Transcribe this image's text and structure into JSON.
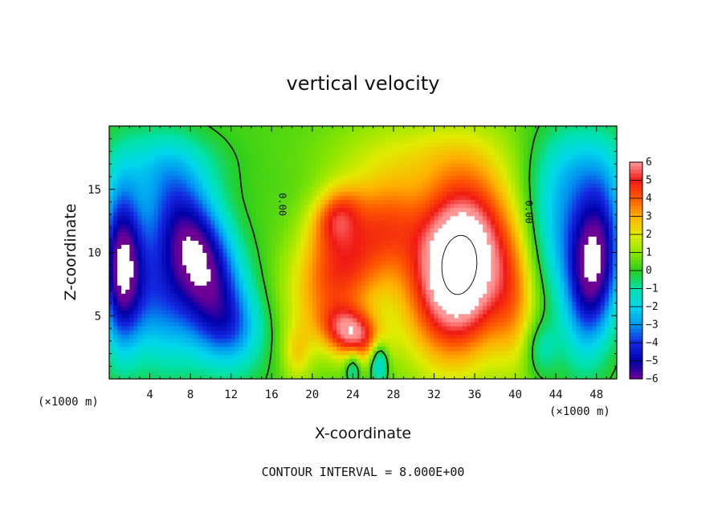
{
  "chart_data": {
    "type": "heatmap",
    "title": "vertical velocity",
    "xlabel": "X-coordinate",
    "ylabel": "Z-coordinate",
    "x_unit": "(×1000 m)",
    "xlim": [
      0,
      50
    ],
    "ylim": [
      0,
      20
    ],
    "x_ticks": [
      4,
      8,
      12,
      16,
      20,
      24,
      28,
      32,
      36,
      40,
      44,
      48
    ],
    "y_ticks": [
      5,
      10,
      15
    ],
    "colorbar": {
      "ticks": [
        6,
        5,
        4,
        3,
        2,
        1,
        0,
        -1,
        -2,
        -3,
        -4,
        -5,
        -6
      ],
      "range": [
        -6,
        6
      ]
    },
    "contour_labels": [
      "0.00",
      "0.00"
    ],
    "footer": "CONTOUR INTERVAL = 8.000E+00",
    "blobs": [
      {
        "x": 8.8,
        "z": 9.5,
        "amp": -6.8,
        "sx": 2.6,
        "sz": 4.6,
        "tilt": -0.35
      },
      {
        "x": 4.5,
        "z": 6.5,
        "amp": -3.2,
        "sx": 2.6,
        "sz": 4.0,
        "tilt": -0.2
      },
      {
        "x": 1.2,
        "z": 9.0,
        "amp": -5.8,
        "sx": 1.4,
        "sz": 4.5,
        "tilt": 0.0
      },
      {
        "x": 47.8,
        "z": 9.0,
        "amp": -6.4,
        "sx": 1.8,
        "sz": 4.5,
        "tilt": 0.1
      },
      {
        "x": 44.5,
        "z": 12.0,
        "amp": -2.6,
        "sx": 2.5,
        "sz": 4.0,
        "tilt": 0.0
      },
      {
        "x": 34.5,
        "z": 9.0,
        "amp": 8.6,
        "sx": 3.4,
        "sz": 4.8,
        "tilt": 0.08
      },
      {
        "x": 23.0,
        "z": 9.0,
        "amp": 4.4,
        "sx": 3.2,
        "sz": 3.8,
        "tilt": 0.3
      },
      {
        "x": 24.0,
        "z": 3.6,
        "amp": 4.8,
        "sx": 1.9,
        "sz": 1.4,
        "tilt": -0.3
      },
      {
        "x": 22.4,
        "z": 13.0,
        "amp": 2.5,
        "sx": 1.6,
        "sz": 1.6,
        "tilt": 0.2
      },
      {
        "x": 27.8,
        "z": 12.5,
        "amp": 1.8,
        "sx": 2.2,
        "sz": 2.6,
        "tilt": 0.0
      },
      {
        "x": 26.6,
        "z": 1.4,
        "amp": -3.0,
        "sx": 0.6,
        "sz": 1.2,
        "tilt": 0.0
      },
      {
        "x": 24.0,
        "z": 1.0,
        "amp": -2.0,
        "sx": 0.5,
        "sz": 0.9,
        "tilt": 0.0
      },
      {
        "x": 18.5,
        "z": 2.0,
        "amp": 1.6,
        "sx": 1.0,
        "sz": 1.6,
        "tilt": 0.0
      },
      {
        "x": 12.0,
        "z": 4.0,
        "amp": -1.6,
        "sx": 2.4,
        "sz": 2.0,
        "tilt": 0.0
      },
      {
        "x": 30.0,
        "z": 18.0,
        "amp": 1.2,
        "sx": 6.0,
        "sz": 2.2,
        "tilt": 0.0
      },
      {
        "x": 6.0,
        "z": 17.0,
        "amp": -1.2,
        "sx": 4.0,
        "sz": 2.0,
        "tilt": 0.0
      },
      {
        "x": 46.5,
        "z": 17.0,
        "amp": -1.5,
        "sx": 3.0,
        "sz": 2.5,
        "tilt": 0.0
      },
      {
        "x": 40.0,
        "z": 6.0,
        "amp": 2.0,
        "sx": 1.6,
        "sz": 4.0,
        "tilt": 0.0
      },
      {
        "x": 42.5,
        "z": 2.5,
        "amp": -1.6,
        "sx": 1.2,
        "sz": 1.6,
        "tilt": 0.0
      }
    ]
  }
}
